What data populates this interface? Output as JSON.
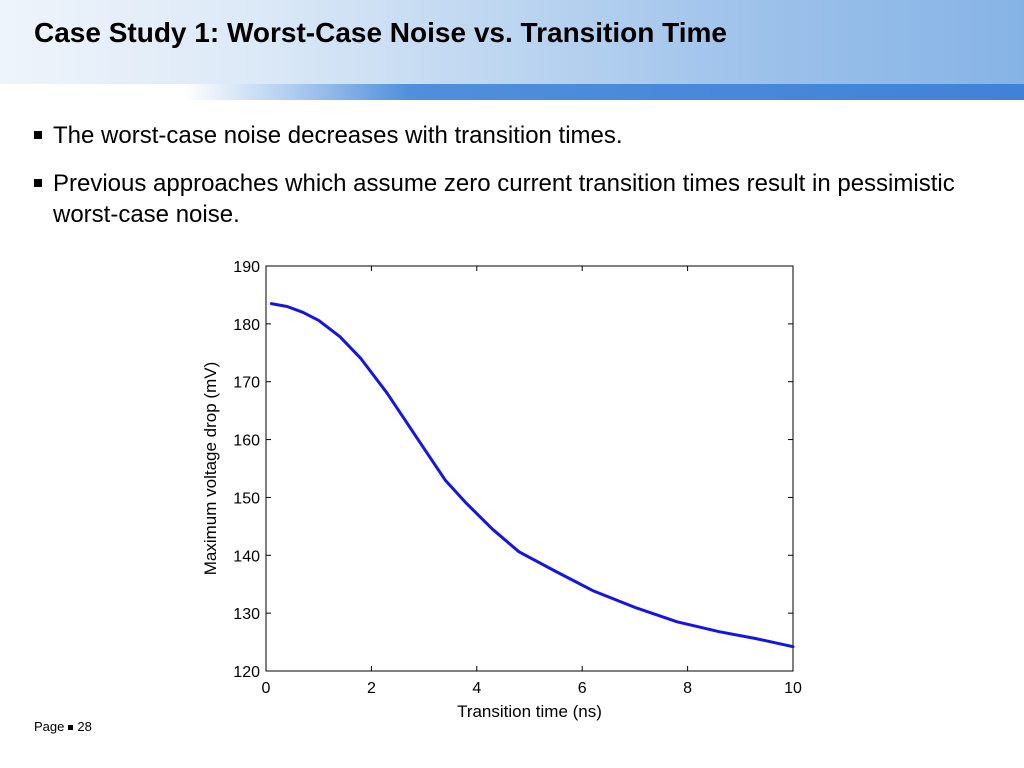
{
  "slide": {
    "title": "Case Study 1: Worst-Case Noise vs. Transition Time",
    "bullets": [
      "The worst-case noise decreases with transition times.",
      "Previous approaches which assume zero current transition times result in pessimistic worst-case noise."
    ],
    "footer": {
      "page_label": "Page",
      "page_number": "28"
    },
    "colors": {
      "line": "#1414e6",
      "title_bar_end": "#86b3e6",
      "stripe": "#3f82d8"
    }
  },
  "chart_data": {
    "type": "line",
    "xlabel": "Transition time (ns)",
    "ylabel": "Maximum voltage drop (mV)",
    "xlim": [
      0,
      10
    ],
    "ylim": [
      120,
      190
    ],
    "xticks": [
      0,
      2,
      4,
      6,
      8,
      10
    ],
    "yticks": [
      120,
      130,
      140,
      150,
      160,
      170,
      180,
      190
    ],
    "grid": false,
    "series": [
      {
        "x": [
          0.1,
          0.4,
          0.7,
          1.0,
          1.4,
          1.8,
          2.3,
          2.9,
          3.4,
          3.8,
          4.3,
          4.8,
          5.5,
          6.2,
          7.0,
          7.8,
          8.6,
          9.3,
          10.0
        ],
        "y": [
          183.5,
          183.0,
          182.0,
          180.6,
          177.8,
          174.0,
          168.0,
          159.8,
          153.0,
          149.0,
          144.5,
          140.6,
          137.2,
          133.9,
          131.0,
          128.5,
          126.8,
          125.6,
          124.2
        ]
      }
    ]
  }
}
